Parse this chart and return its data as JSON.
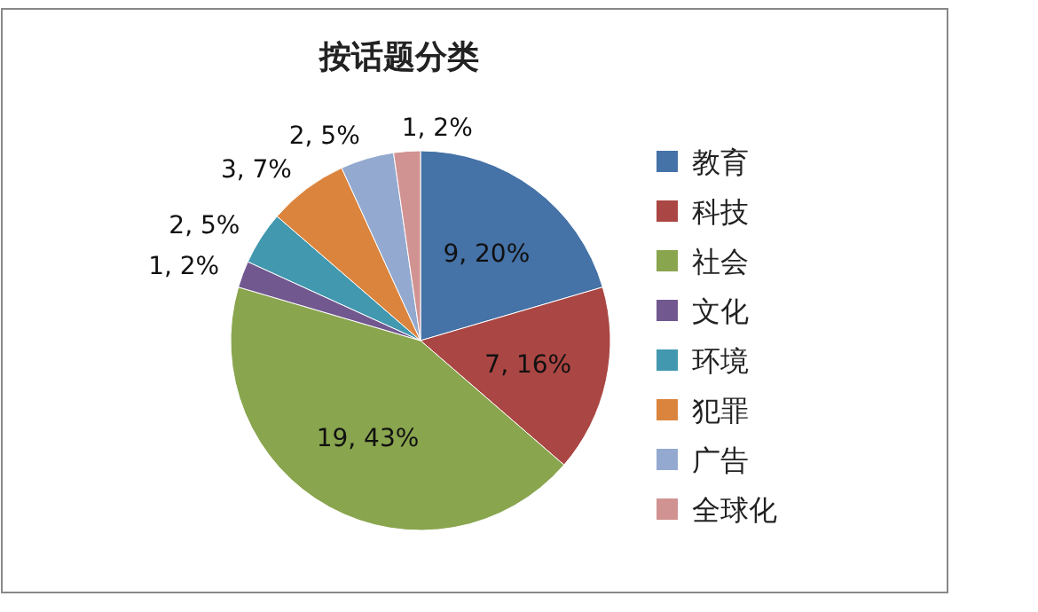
{
  "chart_data": {
    "type": "pie",
    "title": "按话题分类",
    "categories": [
      "教育",
      "科技",
      "社会",
      "文化",
      "环境",
      "犯罪",
      "广告",
      "全球化"
    ],
    "values": [
      9,
      7,
      19,
      1,
      2,
      3,
      2,
      1
    ],
    "colors": [
      "#4572a7",
      "#aa4643",
      "#89a54e",
      "#71588f",
      "#4198af",
      "#db843d",
      "#93a9cf",
      "#d19392"
    ],
    "value_labels": [
      "9, 20%",
      "7, 16%",
      "19, 43%",
      "1, 2%",
      "2, 5%",
      "3, 7%",
      "2, 5%",
      "1, 2%"
    ],
    "legend": "right"
  }
}
